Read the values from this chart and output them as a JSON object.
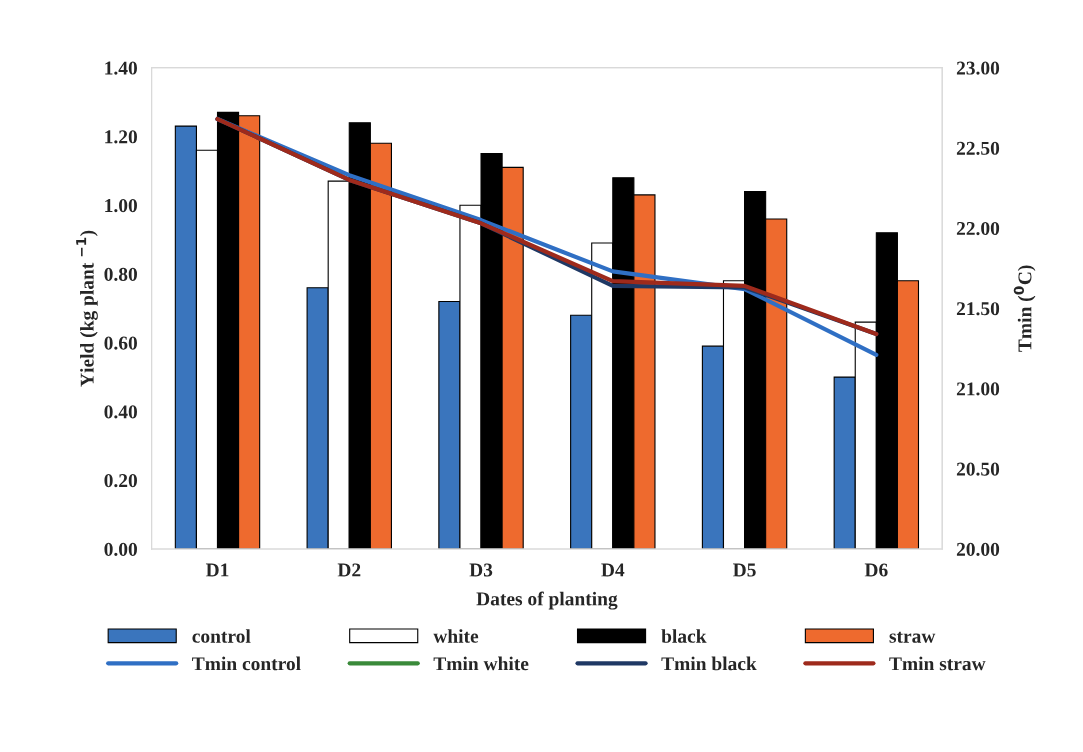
{
  "chart_data": {
    "type": "bar",
    "xlabel": "Dates of planting",
    "ylabel": "Yield (kg plant $^{−1}$)",
    "y2label": "Tmin ($^{0}$C)",
    "categories": [
      "D1",
      "D2",
      "D3",
      "D4",
      "D5",
      "D6"
    ],
    "series": [
      {
        "name": "control",
        "color": "#3a75bd",
        "values": [
          1.23,
          0.76,
          0.72,
          0.68,
          0.59,
          0.5
        ]
      },
      {
        "name": "white",
        "color": "#ffffff",
        "values": [
          1.16,
          1.07,
          1.0,
          0.89,
          0.78,
          0.66
        ]
      },
      {
        "name": "black",
        "color": "#000000",
        "values": [
          1.27,
          1.24,
          1.15,
          1.08,
          1.04,
          0.92
        ]
      },
      {
        "name": "straw",
        "color": "#ee6a2e",
        "values": [
          1.26,
          1.18,
          1.11,
          1.03,
          0.96,
          0.78
        ]
      },
      {
        "name": "Tmin control",
        "type": "line",
        "axis": "y2",
        "color": "#2f6fc4",
        "values": [
          22.68,
          22.33,
          22.05,
          21.73,
          21.62,
          21.21
        ]
      },
      {
        "name": "Tmin white",
        "type": "line",
        "axis": "y2",
        "color": "#3a8a3a",
        "values": [
          null,
          null,
          null,
          null,
          null,
          null
        ]
      },
      {
        "name": "Tmin black",
        "type": "line",
        "axis": "y2",
        "color": "#1f3864",
        "values": [
          22.68,
          22.3,
          22.03,
          21.64,
          21.63,
          21.34
        ]
      },
      {
        "name": "Tmin straw",
        "type": "line",
        "axis": "y2",
        "color": "#9e2a1c",
        "values": [
          22.68,
          22.3,
          22.03,
          21.67,
          21.64,
          21.34
        ]
      }
    ],
    "ylim": [
      0,
      1.4
    ],
    "yticks": [
      {
        "value": 0,
        "label": "0.00"
      },
      {
        "value": 0.2,
        "label": "0.20"
      },
      {
        "value": 0.4,
        "label": "0.40"
      },
      {
        "value": 0.6,
        "label": "0.60"
      },
      {
        "value": 0.8,
        "label": "0.80"
      },
      {
        "value": 1.0,
        "label": "1.00"
      },
      {
        "value": 1.2,
        "label": "1.20"
      },
      {
        "value": 1.4,
        "label": "1.40"
      }
    ],
    "y2lim": [
      20,
      23
    ],
    "y2ticks": [
      {
        "value": 20,
        "label": "20.00"
      },
      {
        "value": 20.5,
        "label": "20.50"
      },
      {
        "value": 21,
        "label": "21.00"
      },
      {
        "value": 21.5,
        "label": "21.50"
      },
      {
        "value": 22,
        "label": "22.00"
      },
      {
        "value": 22.5,
        "label": "22.50"
      },
      {
        "value": 23,
        "label": "23.00"
      }
    ],
    "grid": false,
    "legend": "bottom",
    "marker": "none",
    "line_style": "solid"
  }
}
